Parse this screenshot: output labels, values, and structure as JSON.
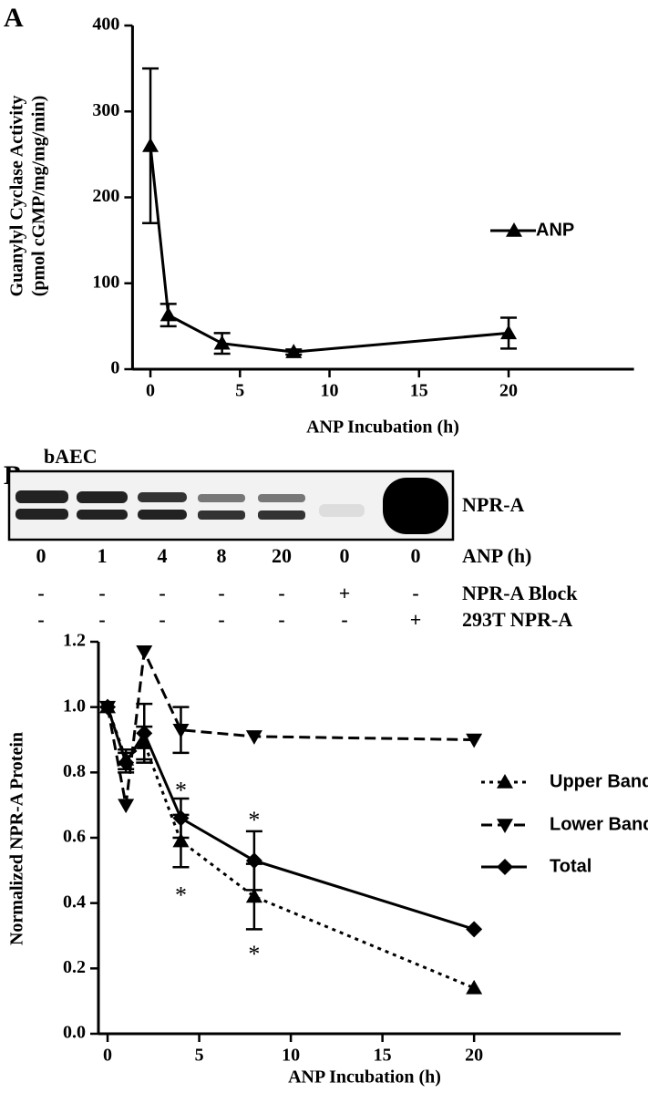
{
  "panel_labels": [
    "A",
    "B"
  ],
  "blot": {
    "cell": "bAEC",
    "band_label": "NPR-A",
    "rows": [
      {
        "label": "ANP (h)",
        "cells": [
          "0",
          "1",
          "4",
          "8",
          "20",
          "0",
          "0"
        ]
      },
      {
        "label": "NPR-A Block",
        "cells": [
          "-",
          "-",
          "-",
          "-",
          "-",
          "+",
          "-"
        ]
      },
      {
        "label": "293T NPR-A",
        "cells": [
          "-",
          "-",
          "-",
          "-",
          "-",
          "-",
          "+"
        ]
      }
    ]
  },
  "chart_data": [
    {
      "type": "line",
      "xlabel": "ANP Incubation (h)",
      "ylabel": [
        "Guanylyl Cyclase Activity",
        "(pmol cGMP/mg/mg/min)"
      ],
      "x": [
        0,
        1,
        4,
        8,
        20
      ],
      "xlim": [
        -1,
        27
      ],
      "xticks": [
        0,
        5,
        10,
        15,
        20
      ],
      "ylim": [
        0,
        400
      ],
      "yticks": [
        0,
        100,
        200,
        300,
        400
      ],
      "series": [
        {
          "name": "ANP",
          "color": "#000000",
          "marker": "triangle-up",
          "linestyle": "solid",
          "values": [
            260,
            63,
            30,
            20,
            42
          ],
          "errors": [
            90,
            13,
            12,
            3,
            18
          ]
        }
      ]
    },
    {
      "type": "line",
      "xlabel": "ANP Incubation (h)",
      "ylabel": [
        "Normalized NPR-A Protein"
      ],
      "x": [
        0,
        1,
        2,
        4,
        8,
        20
      ],
      "xlim": [
        -0.5,
        28
      ],
      "xticks": [
        0,
        5,
        10,
        15,
        20
      ],
      "ylim": [
        0,
        1.2
      ],
      "yticks": [
        {
          "value": 0,
          "label": "0.0"
        },
        0.2,
        0.4,
        0.6,
        0.8,
        {
          "value": 1,
          "label": "1.0"
        },
        1.2
      ],
      "series": [
        {
          "name": "Upper Band",
          "color": "#000000",
          "marker": "triangle-up",
          "linestyle": "dotted",
          "values": [
            1.0,
            0.84,
            0.89,
            0.59,
            0.42,
            0.14
          ],
          "errors": [
            0,
            0.03,
            0.05,
            0.08,
            0.1,
            0
          ]
        },
        {
          "name": "Lower Band",
          "color": "#000000",
          "marker": "triangle-down",
          "linestyle": "dashed",
          "values": [
            1.0,
            0.7,
            1.17,
            0.93,
            0.91,
            0.9
          ],
          "errors": [
            0,
            0,
            0,
            0.07,
            0,
            0
          ]
        },
        {
          "name": "Total",
          "color": "#000000",
          "marker": "diamond",
          "linestyle": "solid",
          "values": [
            1.0,
            0.83,
            0.92,
            0.66,
            0.53,
            0.32
          ],
          "errors": [
            0,
            0.03,
            0.09,
            0.06,
            0.09,
            0
          ]
        }
      ],
      "annotations": [
        {
          "text": "*",
          "x": 4,
          "y": 0.76
        },
        {
          "text": "*",
          "x": 4,
          "y": 0.44
        },
        {
          "text": "*",
          "x": 8,
          "y": 0.67
        },
        {
          "text": "*",
          "x": 8,
          "y": 0.26
        }
      ]
    }
  ]
}
